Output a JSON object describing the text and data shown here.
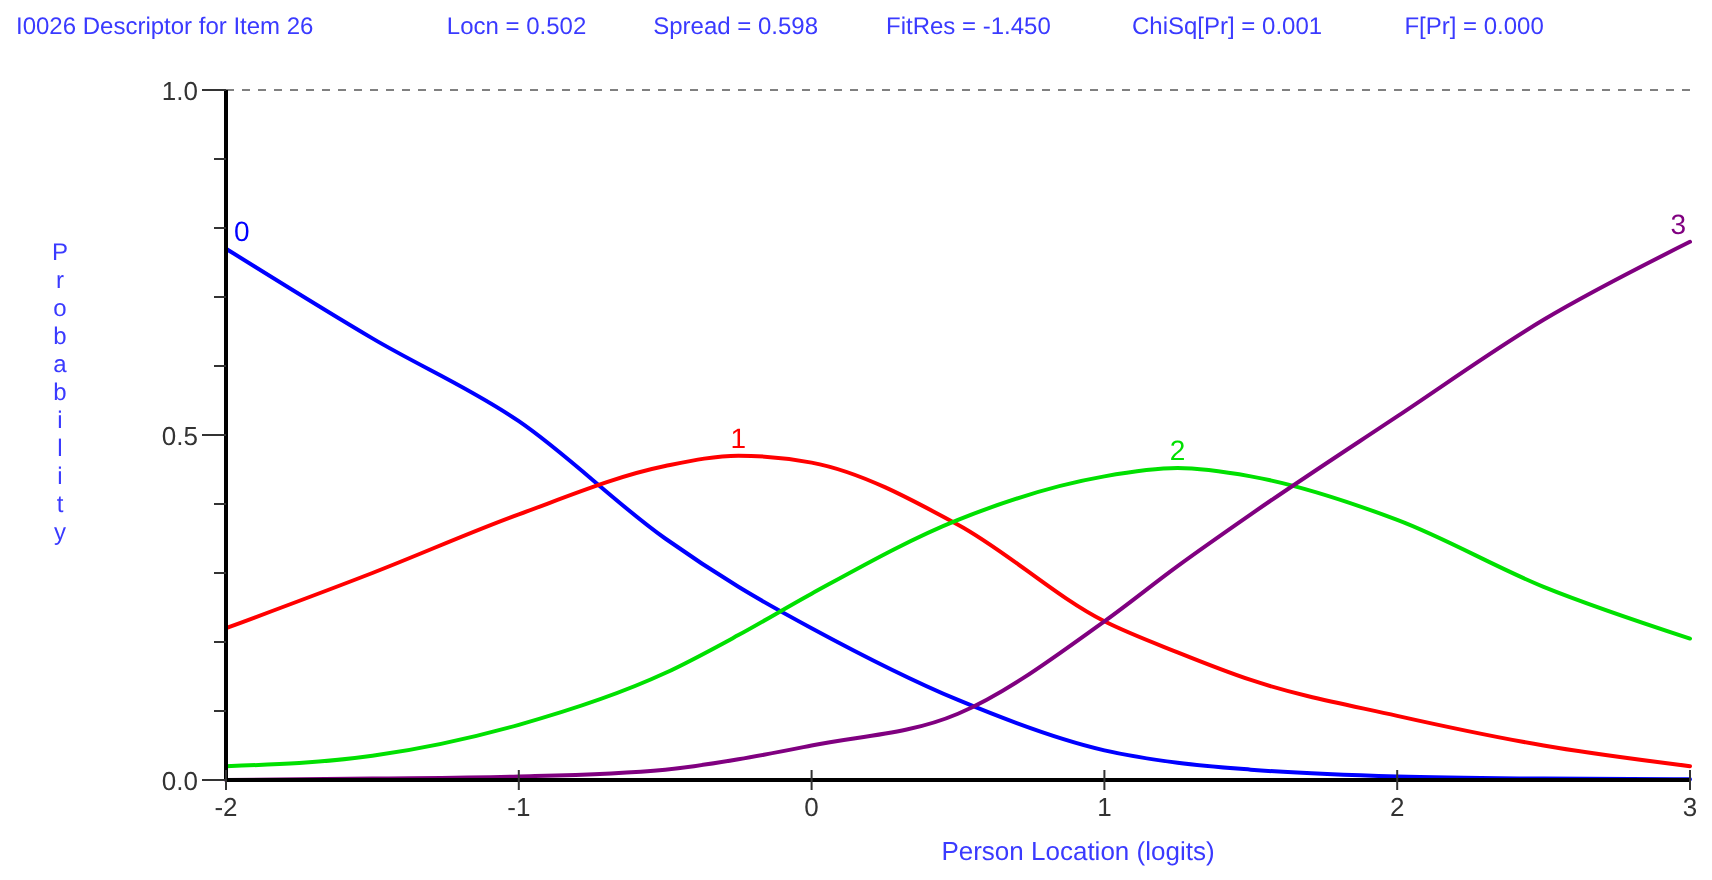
{
  "chart_data": {
    "type": "line",
    "title": "I0026  Descriptor for Item 26",
    "annotations": [
      "Locn = 0.502",
      "Spread = 0.598",
      "FitRes = -1.450",
      "ChiSq[Pr] = 0.001",
      "F[Pr] = 0.000"
    ],
    "xlabel": "Person Location (logits)",
    "ylabel": "Probability",
    "x": [
      -2,
      -1.5,
      -1,
      -0.5,
      -0.25,
      0,
      0.5,
      1,
      1.25,
      1.5,
      2,
      2.5,
      3
    ],
    "series": [
      {
        "name": "0",
        "color": "#0000ff",
        "values": [
          0.77,
          0.64,
          0.52,
          0.35,
          0.28,
          0.22,
          0.116,
          0.043,
          0.025,
          0.015,
          0.005,
          0.002,
          0.001
        ]
      },
      {
        "name": "1",
        "color": "#ff0000",
        "values": [
          0.22,
          0.3,
          0.385,
          0.455,
          0.47,
          0.46,
          0.37,
          0.23,
          0.185,
          0.145,
          0.093,
          0.05,
          0.02
        ]
      },
      {
        "name": "2",
        "color": "#00e000",
        "values": [
          0.02,
          0.035,
          0.08,
          0.155,
          0.21,
          0.27,
          0.377,
          0.44,
          0.452,
          0.44,
          0.377,
          0.28,
          0.205
        ]
      },
      {
        "name": "3",
        "color": "#800080",
        "values": [
          0,
          0.002,
          0.005,
          0.015,
          0.03,
          0.05,
          0.096,
          0.23,
          0.31,
          0.385,
          0.527,
          0.667,
          0.78
        ]
      }
    ],
    "xlim": [
      -2,
      3
    ],
    "xticks": [
      -2,
      -1,
      0,
      1,
      2,
      3
    ],
    "ylim": [
      0,
      1
    ],
    "yticks": [
      {
        "value": 0,
        "label": "0.0"
      },
      {
        "value": 0.1,
        "label": null
      },
      {
        "value": 0.2,
        "label": null
      },
      {
        "value": 0.3,
        "label": null
      },
      {
        "value": 0.4,
        "label": null
      },
      {
        "value": 0.5,
        "label": "0.5"
      },
      {
        "value": 0.6,
        "label": null
      },
      {
        "value": 0.7,
        "label": null
      },
      {
        "value": 0.8,
        "label": null
      },
      {
        "value": 0.9,
        "label": null
      },
      {
        "value": 1,
        "label": "1.0"
      }
    ],
    "ref_lines": [
      {
        "axis": "y",
        "value": 1,
        "color": "#808080",
        "line_style": "dashed"
      }
    ],
    "grid": false,
    "marker": "none",
    "line_style": "solid"
  }
}
